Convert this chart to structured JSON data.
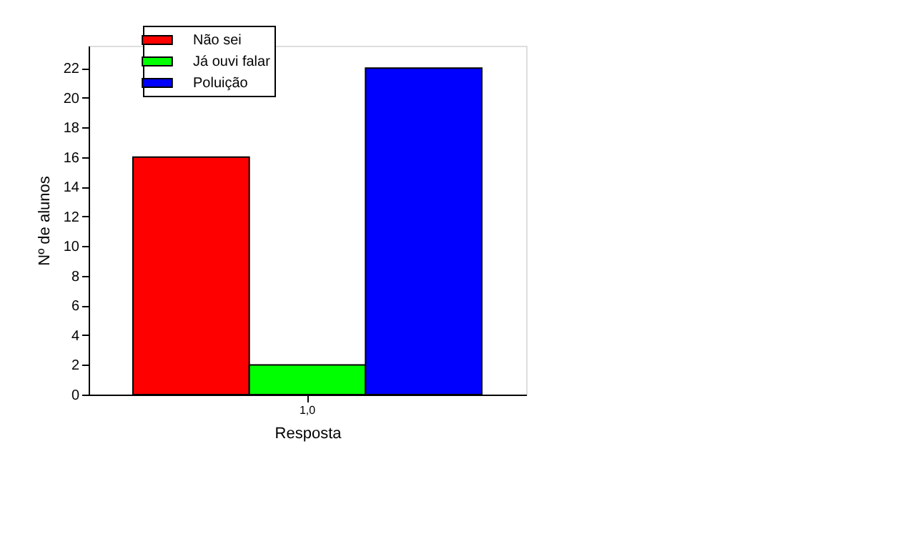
{
  "chart_data": {
    "type": "bar",
    "xlabel": "Resposta",
    "ylabel": "Nº de alunos",
    "categories": [
      "1,0"
    ],
    "series": [
      {
        "name": "Não sei",
        "color": "#ff0000",
        "values": [
          16
        ]
      },
      {
        "name": "Já ouvi falar",
        "color": "#00ff00",
        "values": [
          2
        ]
      },
      {
        "name": "Poluição",
        "color": "#0000ff",
        "values": [
          22
        ]
      }
    ],
    "ylim": [
      0,
      23.5
    ],
    "yticks": [
      0,
      2,
      4,
      6,
      8,
      10,
      12,
      14,
      16,
      18,
      20,
      22
    ],
    "grid": false,
    "legend": "top left"
  }
}
